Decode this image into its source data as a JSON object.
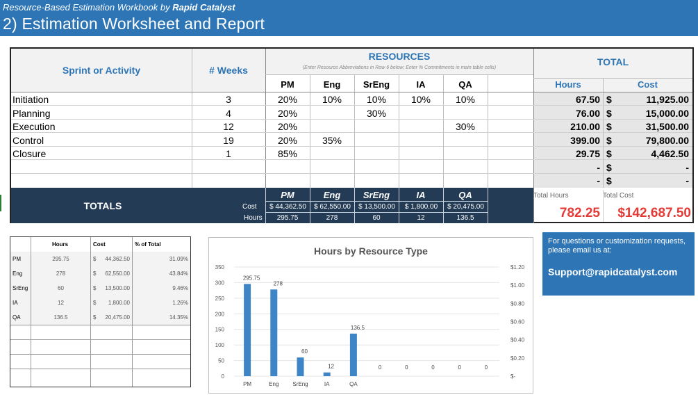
{
  "banner": {
    "subtitle_prefix": "Resource-Based Estimation Workbook by",
    "subtitle_brand": "Rapid Catalyst",
    "title": "2) Estimation Worksheet and Report"
  },
  "table": {
    "col_activity": "Sprint or Activity",
    "col_weeks": "# Weeks",
    "resources_title": "RESOURCES",
    "resources_note": "(Enter Resource Abbreviations in Row 6 below; Enter % Commitments in main table cells)",
    "total_title": "TOTAL",
    "total_hours_label": "Hours",
    "total_cost_label": "Cost",
    "resources": [
      "PM",
      "Eng",
      "SrEng",
      "IA",
      "QA"
    ],
    "rows": [
      {
        "name": "Initiation",
        "weeks": "3",
        "pct": [
          "20%",
          "10%",
          "10%",
          "10%",
          "10%"
        ],
        "hours": "67.50",
        "dollar": "$",
        "cost": "11,925.00"
      },
      {
        "name": "Planning",
        "weeks": "4",
        "pct": [
          "20%",
          "",
          "30%",
          "",
          ""
        ],
        "hours": "76.00",
        "dollar": "$",
        "cost": "15,000.00"
      },
      {
        "name": "Execution",
        "weeks": "12",
        "pct": [
          "20%",
          "",
          "",
          "",
          "30%"
        ],
        "hours": "210.00",
        "dollar": "$",
        "cost": "31,500.00"
      },
      {
        "name": "Control",
        "weeks": "19",
        "pct": [
          "20%",
          "35%",
          "",
          "",
          ""
        ],
        "hours": "399.00",
        "dollar": "$",
        "cost": "79,800.00"
      },
      {
        "name": "Closure",
        "weeks": "1",
        "pct": [
          "85%",
          "",
          "",
          "",
          ""
        ],
        "hours": "29.75",
        "dollar": "$",
        "cost": "4,462.50"
      },
      {
        "name": "",
        "weeks": "",
        "pct": [
          "",
          "",
          "",
          "",
          ""
        ],
        "hours": "-",
        "dollar": "$",
        "cost": "-"
      },
      {
        "name": "",
        "weeks": "",
        "pct": [
          "",
          "",
          "",
          "",
          ""
        ],
        "hours": "-",
        "dollar": "$",
        "cost": "-"
      }
    ],
    "totals_label": "TOTALS",
    "cost_label": "Cost",
    "hours_label": "Hours",
    "res_costs": [
      "$ 44,362.50",
      "$ 62,550.00",
      "$ 13,500.00",
      "$  1,800.00",
      "$ 20,475.00"
    ],
    "res_hours": [
      "295.75",
      "278",
      "60",
      "12",
      "136.5"
    ],
    "grand_hours_label": "Total Hours",
    "grand_cost_label": "Total Cost",
    "grand_hours": "782.25",
    "grand_cost": "$142,687.50"
  },
  "summary": {
    "headers": [
      "",
      "Hours",
      "Cost",
      "% of Total"
    ],
    "rows": [
      [
        "PM",
        "295.75",
        "$",
        "44,362.50",
        "31.09%"
      ],
      [
        "Eng",
        "278",
        "$",
        "62,550.00",
        "43.84%"
      ],
      [
        "SrEng",
        "60",
        "$",
        "13,500.00",
        "9.46%"
      ],
      [
        "IA",
        "12",
        "$",
        "1,800.00",
        "1.26%"
      ],
      [
        "QA",
        "136.5",
        "$",
        "20,475.00",
        "14.35%"
      ]
    ]
  },
  "chart_data": {
    "type": "bar",
    "title": "Hours by Resource Type",
    "categories": [
      "PM",
      "Eng",
      "SrEng",
      "IA",
      "QA",
      "",
      "",
      "",
      "",
      ""
    ],
    "values": [
      295.75,
      278,
      60,
      12,
      136.5,
      0,
      0,
      0,
      0,
      0
    ],
    "data_labels": [
      "295.75",
      "278",
      "60",
      "12",
      "136.5",
      "0",
      "0",
      "0",
      "0",
      "0"
    ],
    "ylim": [
      0,
      350
    ],
    "yticks": [
      "350",
      "300",
      "250",
      "200",
      "150",
      "100",
      "50",
      "0"
    ],
    "y2ticks": [
      "$1.20",
      "$1.00",
      "$0.80",
      "$0.60",
      "$0.40",
      "$0.20",
      "$-"
    ],
    "bar_color": "#3d85c6",
    "grid": true
  },
  "support": {
    "question": "For questions or customization requests, please email us at:",
    "email": "Support@rapidcatalyst.com"
  },
  "colors": {
    "banner": "#2e75b6",
    "totals_bar": "#233b55",
    "grand_value": "#e53935",
    "accent_text": "#2e75b6"
  }
}
